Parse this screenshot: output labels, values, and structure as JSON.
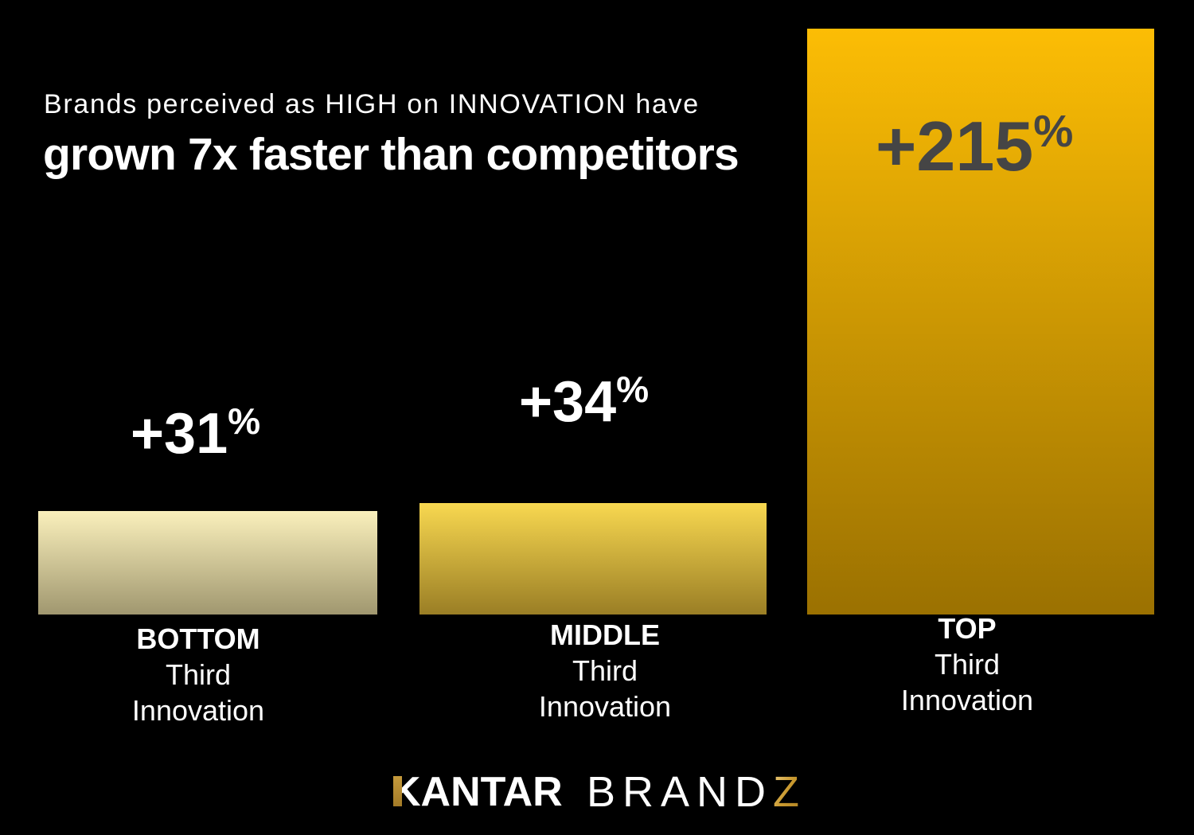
{
  "title": {
    "line1": "Brands perceived as HIGH on INNOVATION have",
    "line2": "grown 7x faster than competitors"
  },
  "chart_data": {
    "type": "bar",
    "categories": [
      "BOTTOM Third Innovation",
      "MIDDLE Third Innovation",
      "TOP Third Innovation"
    ],
    "values": [
      31,
      34,
      215
    ],
    "value_labels": [
      "+31%",
      "+34%",
      "+215%"
    ],
    "title": "Brands perceived as HIGH on INNOVATION have grown 7x faster than competitors",
    "xlabel": "",
    "ylabel": "",
    "ylim": [
      0,
      230
    ],
    "grid": false,
    "legend": false,
    "bar_colors": [
      "gradient #FAF0BC-#A0976F",
      "gradient #F8D850-#9A7E25",
      "gradient #FCBD05-#9B7101"
    ]
  },
  "bars": [
    {
      "value": "+31",
      "pct": "%",
      "label1": "BOTTOM",
      "label2": "Third",
      "label3": "Innovation"
    },
    {
      "value": "+34",
      "pct": "%",
      "label1": "MIDDLE",
      "label2": "Third",
      "label3": "Innovation"
    },
    {
      "value": "+215",
      "pct": "%",
      "label1": "TOP",
      "label2": "Third",
      "label3": "Innovation"
    }
  ],
  "footer": {
    "kantar": "KANTAR",
    "brand": "BRAND",
    "z": "Z"
  },
  "colors": {
    "background": "#000000",
    "text": "#FFFFFF",
    "big_value": "#454545",
    "gold_accent": "#C9992F"
  }
}
